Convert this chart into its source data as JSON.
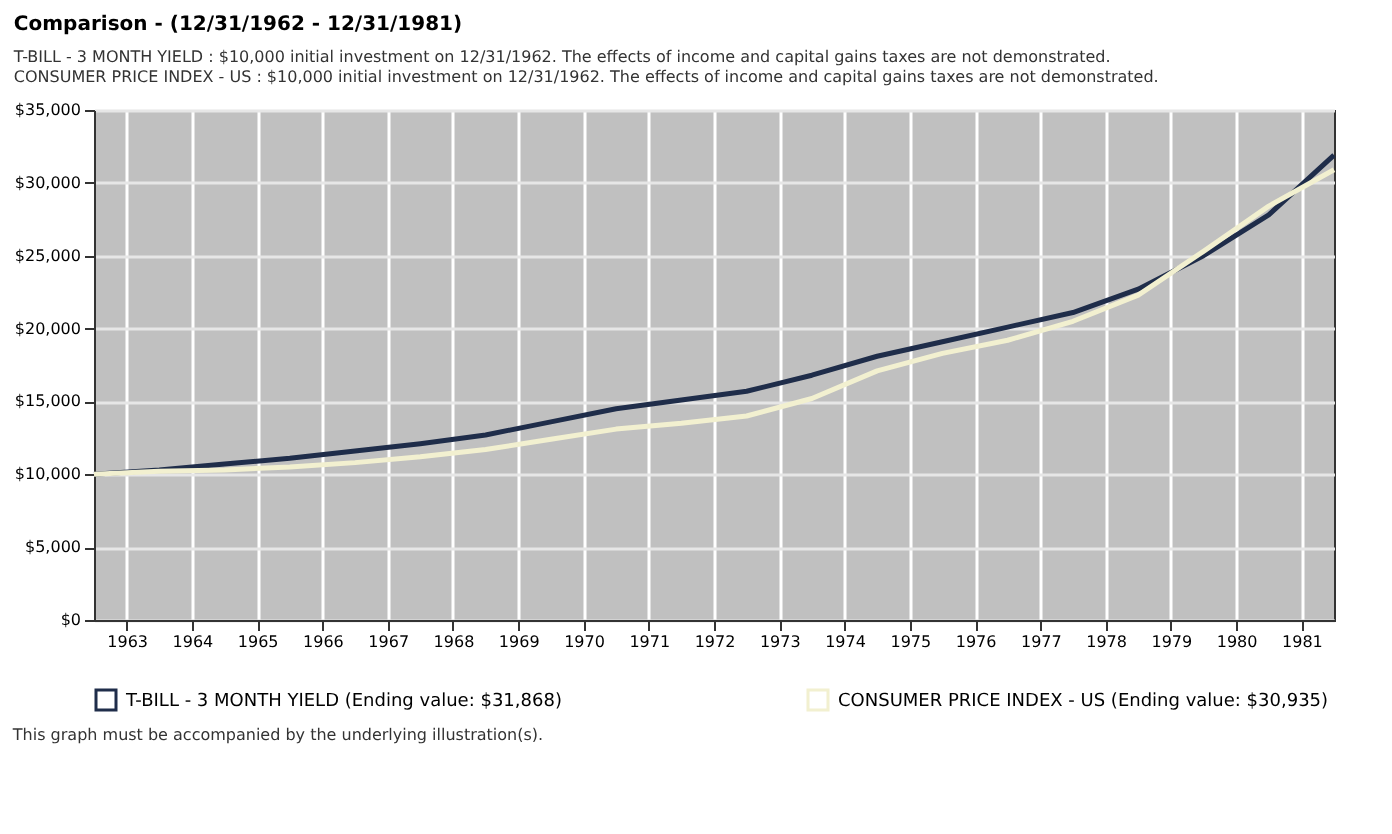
{
  "chart_data": {
    "type": "line",
    "title": "Comparison - (12/31/1962 - 12/31/1981)",
    "annotations": [
      "T-BILL - 3 MONTH YIELD : $10,000 initial investment on 12/31/1962. The effects of income and capital gains taxes are not demonstrated.",
      "CONSUMER PRICE INDEX - US : $10,000 initial investment on 12/31/1962. The effects of income and capital gains taxes are not demonstrated.",
      "This graph must be accompanied by the underlying illustration(s)."
    ],
    "x": [
      1963,
      1964,
      1965,
      1966,
      1967,
      1968,
      1969,
      1970,
      1971,
      1972,
      1973,
      1974,
      1975,
      1976,
      1977,
      1978,
      1979,
      1980,
      1981,
      1982
    ],
    "series": [
      {
        "name": "T-BILL - 3 MONTH YIELD (Ending value: $31,868)",
        "color": "#1f2d4a",
        "values": [
          10000,
          10300,
          10700,
          11100,
          11600,
          12100,
          12700,
          13600,
          14500,
          15100,
          15700,
          16800,
          18100,
          19100,
          20100,
          21100,
          22700,
          25000,
          27800,
          31900
        ]
      },
      {
        "name": "CONSUMER PRICE INDEX - US (Ending value: $30,935)",
        "color": "#f2f0d0",
        "values": [
          10000,
          10200,
          10300,
          10500,
          10800,
          11200,
          11700,
          12400,
          13100,
          13500,
          14000,
          15200,
          17100,
          18300,
          19200,
          20500,
          22300,
          25300,
          28400,
          30900
        ]
      }
    ],
    "xlim": [
      1963,
      1982
    ],
    "xticks": [
      {
        "value": 1963.5,
        "label": "1963"
      },
      {
        "value": 1964.5,
        "label": "1964"
      },
      {
        "value": 1965.5,
        "label": "1965"
      },
      {
        "value": 1966.5,
        "label": "1966"
      },
      {
        "value": 1967.5,
        "label": "1967"
      },
      {
        "value": 1968.5,
        "label": "1968"
      },
      {
        "value": 1969.5,
        "label": "1969"
      },
      {
        "value": 1970.5,
        "label": "1970"
      },
      {
        "value": 1971.5,
        "label": "1971"
      },
      {
        "value": 1972.5,
        "label": "1972"
      },
      {
        "value": 1973.5,
        "label": "1973"
      },
      {
        "value": 1974.5,
        "label": "1974"
      },
      {
        "value": 1975.5,
        "label": "1975"
      },
      {
        "value": 1976.5,
        "label": "1976"
      },
      {
        "value": 1977.5,
        "label": "1977"
      },
      {
        "value": 1978.5,
        "label": "1978"
      },
      {
        "value": 1979.5,
        "label": "1979"
      },
      {
        "value": 1980.5,
        "label": "1980"
      },
      {
        "value": 1981.5,
        "label": "1981"
      }
    ],
    "ylim": [
      0,
      35000
    ],
    "yticks": [
      {
        "value": 0,
        "label": "$0"
      },
      {
        "value": 5000,
        "label": "$5,000"
      },
      {
        "value": 10000,
        "label": "$10,000"
      },
      {
        "value": 15000,
        "label": "$15,000"
      },
      {
        "value": 20000,
        "label": "$20,000"
      },
      {
        "value": 25000,
        "label": "$25,000"
      },
      {
        "value": 30000,
        "label": "$30,000"
      },
      {
        "value": 35000,
        "label": "$35,000"
      }
    ],
    "grid": true,
    "legend": "bottom",
    "marker": "none",
    "line_style": "solid"
  }
}
